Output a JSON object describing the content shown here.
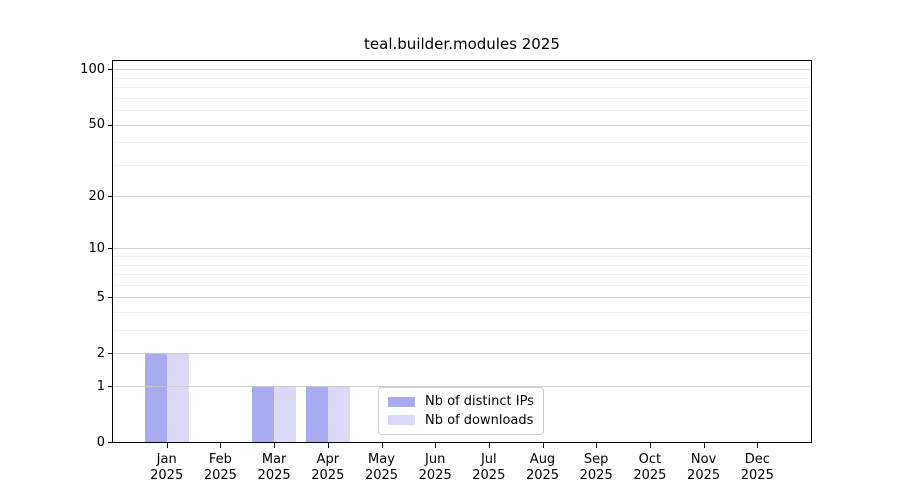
{
  "chart_data": {
    "type": "bar",
    "title": "teal.builder.modules 2025",
    "categories": [
      "Jan",
      "Feb",
      "Mar",
      "Apr",
      "May",
      "Jun",
      "Jul",
      "Aug",
      "Sep",
      "Oct",
      "Nov",
      "Dec"
    ],
    "category_sublabel": "2025",
    "series": [
      {
        "name": "Nb of distinct IPs",
        "color": "#aaaaf0",
        "values": [
          2,
          0,
          1,
          1,
          0,
          0,
          0,
          0,
          0,
          0,
          0,
          0
        ]
      },
      {
        "name": "Nb of downloads",
        "color": "#dadaf6",
        "values": [
          2,
          0,
          1,
          1,
          0,
          0,
          0,
          0,
          0,
          0,
          0,
          0
        ]
      }
    ],
    "xlabel": "",
    "ylabel": "",
    "scale": "log10(1+y)",
    "ylim": [
      0,
      111
    ],
    "y_major_ticks": [
      0,
      1,
      2,
      5,
      10,
      20,
      50,
      100
    ],
    "y_minor_gridlines": [
      3,
      4,
      6,
      7,
      8,
      9,
      30,
      40,
      60,
      70,
      80,
      90
    ],
    "grid": "on",
    "legend_position": "lower center",
    "colors": {
      "major_grid": "#c9c9c9",
      "minor_grid": "#efefef",
      "axis": "#000000",
      "text": "#000000",
      "background": "#ffffff"
    }
  }
}
